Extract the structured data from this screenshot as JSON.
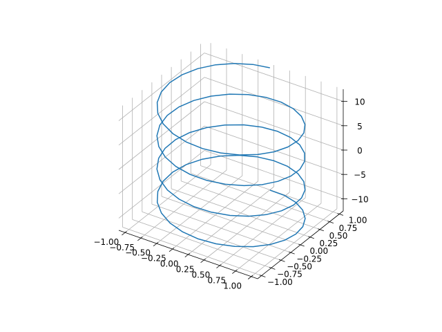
{
  "chart_data": {
    "type": "line",
    "projection": "3d",
    "title": "",
    "xlabel": "",
    "ylabel": "",
    "zlabel": "",
    "grid": true,
    "xlim": [
      -1.1,
      1.1
    ],
    "ylim": [
      -1.1,
      1.1
    ],
    "zlim": [
      -12.5,
      12.5
    ],
    "x_ticks": [
      -1.0,
      -0.75,
      -0.5,
      -0.25,
      0.0,
      0.25,
      0.5,
      0.75,
      1.0
    ],
    "x_tick_labels": [
      "−1.00",
      "−0.75",
      "−0.50",
      "−0.25",
      "0.00",
      "0.25",
      "0.50",
      "0.75",
      "1.00"
    ],
    "y_ticks": [
      -1.0,
      -0.75,
      -0.5,
      -0.25,
      0.0,
      0.25,
      0.5,
      0.75,
      1.0
    ],
    "y_tick_labels": [
      "−1.00",
      "−0.75",
      "−0.50",
      "−0.25",
      "0.00",
      "0.25",
      "0.50",
      "0.75",
      "1.00"
    ],
    "z_ticks": [
      -10,
      -5,
      0,
      5,
      10
    ],
    "z_tick_labels": [
      "−10",
      "−5",
      "0",
      "5",
      "10"
    ],
    "series": [
      {
        "color": "#1f77b4",
        "parametric": {
          "t_range": [
            -12.566,
            12.566
          ],
          "n_points": 100,
          "x": "sin(t)",
          "y": "cos(t)",
          "z": "t"
        }
      }
    ]
  }
}
